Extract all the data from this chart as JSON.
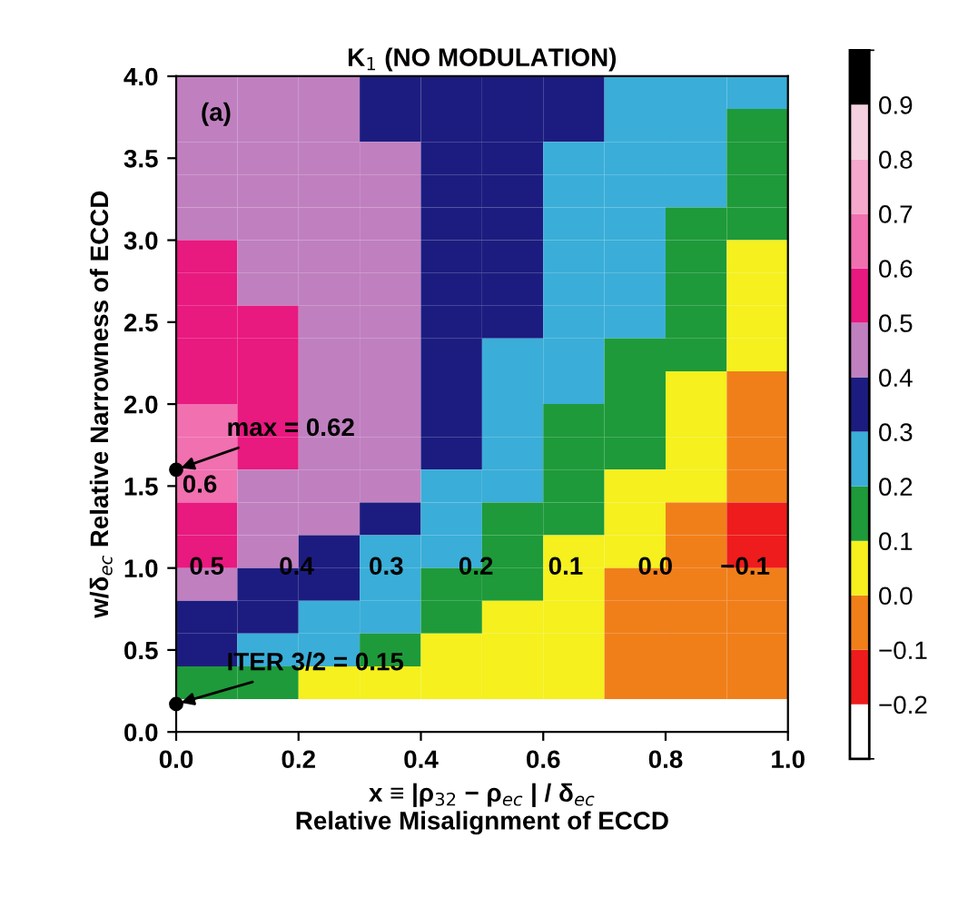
{
  "chart_data": {
    "type": "heatmap",
    "title": "K$_{1}$ (NO MODULATION)",
    "xlabel": "x ≡ |ρ$_{32}$ − ρ$_{ec}$ | / δ$_{ec}$\nRelative Misalignment of ECCD",
    "ylabel": "w/δ$_{ec}$ Relative Narrowness of ECCD",
    "x": [
      0.05,
      0.15,
      0.25,
      0.35,
      0.45,
      0.55,
      0.65,
      0.75,
      0.85,
      0.95
    ],
    "y": [
      3.9,
      3.7,
      3.5,
      3.3,
      3.1,
      2.9,
      2.7,
      2.5,
      2.3,
      2.1,
      1.9,
      1.7,
      1.5,
      1.3,
      1.1,
      0.9,
      0.7,
      0.5,
      0.3
    ],
    "cells": [
      [
        0.45,
        0.45,
        0.45,
        0.35,
        0.35,
        0.35,
        0.35,
        0.25,
        0.25,
        0.25
      ],
      [
        0.45,
        0.45,
        0.45,
        0.35,
        0.35,
        0.35,
        0.35,
        0.25,
        0.25,
        0.15
      ],
      [
        0.45,
        0.45,
        0.45,
        0.45,
        0.35,
        0.35,
        0.25,
        0.25,
        0.25,
        0.15
      ],
      [
        0.45,
        0.45,
        0.45,
        0.45,
        0.35,
        0.35,
        0.25,
        0.25,
        0.25,
        0.15
      ],
      [
        0.45,
        0.45,
        0.45,
        0.45,
        0.35,
        0.35,
        0.25,
        0.25,
        0.15,
        0.15
      ],
      [
        0.55,
        0.45,
        0.45,
        0.45,
        0.35,
        0.35,
        0.25,
        0.25,
        0.15,
        0.05
      ],
      [
        0.55,
        0.45,
        0.45,
        0.45,
        0.35,
        0.35,
        0.25,
        0.25,
        0.15,
        0.05
      ],
      [
        0.55,
        0.55,
        0.45,
        0.45,
        0.35,
        0.35,
        0.25,
        0.25,
        0.15,
        0.05
      ],
      [
        0.55,
        0.55,
        0.45,
        0.45,
        0.35,
        0.25,
        0.25,
        0.15,
        0.15,
        0.05
      ],
      [
        0.55,
        0.55,
        0.45,
        0.45,
        0.35,
        0.25,
        0.25,
        0.15,
        0.05,
        -0.05
      ],
      [
        0.65,
        0.55,
        0.45,
        0.45,
        0.35,
        0.25,
        0.15,
        0.15,
        0.05,
        -0.05
      ],
      [
        0.65,
        0.55,
        0.45,
        0.45,
        0.35,
        0.25,
        0.15,
        0.15,
        0.05,
        -0.05
      ],
      [
        0.65,
        0.45,
        0.45,
        0.45,
        0.25,
        0.25,
        0.15,
        0.05,
        0.05,
        -0.05
      ],
      [
        0.55,
        0.45,
        0.45,
        0.35,
        0.25,
        0.15,
        0.15,
        0.05,
        -0.05,
        -0.15
      ],
      [
        0.55,
        0.45,
        0.35,
        0.25,
        0.25,
        0.15,
        0.05,
        0.05,
        -0.05,
        -0.15
      ],
      [
        0.45,
        0.35,
        0.35,
        0.25,
        0.15,
        0.15,
        0.05,
        -0.05,
        -0.05,
        -0.05
      ],
      [
        0.35,
        0.35,
        0.25,
        0.25,
        0.15,
        0.05,
        0.05,
        -0.05,
        -0.05,
        -0.05
      ],
      [
        0.35,
        0.25,
        0.25,
        0.15,
        0.05,
        0.05,
        0.05,
        -0.05,
        -0.05,
        -0.05
      ],
      [
        0.15,
        0.15,
        0.05,
        0.05,
        0.05,
        0.05,
        0.05,
        -0.05,
        -0.05,
        -0.05
      ]
    ],
    "colors": [
      "#ffffff",
      "#ee1c1c",
      "#f07f1a",
      "#f5f01e",
      "#1e9a3a",
      "#3aaed8",
      "#1c1c80",
      "#c080c0",
      "#e8197f",
      "#f070b0",
      "#f5a8cc",
      "#f5d0e0",
      "#000000"
    ],
    "clim": [
      -0.3,
      1.0
    ],
    "cticks": [
      {
        "value": -0.2,
        "label": "−0.2"
      },
      {
        "value": -0.1,
        "label": "−0.1"
      },
      {
        "value": 0.0,
        "label": "0.0"
      },
      0.1,
      0.2,
      0.3,
      0.4,
      0.5,
      0.6,
      0.7,
      0.8,
      0.9
    ],
    "xlim": [
      0,
      1
    ],
    "ylim": [
      0,
      4
    ],
    "xticks": [
      {
        "value": 0,
        "label": "0.0"
      },
      0.2,
      0.4,
      0.6,
      0.8,
      {
        "value": 1,
        "label": "1.0"
      }
    ],
    "yticks": [
      {
        "value": 0,
        "label": "0.0"
      },
      0.5,
      {
        "value": 1,
        "label": "1.0"
      },
      1.5,
      {
        "value": 2,
        "label": "2.0"
      },
      2.5,
      {
        "value": 3,
        "label": "3.0"
      },
      3.5,
      {
        "value": 4,
        "label": "4.0"
      }
    ],
    "series": [
      {
        "type": "scatter",
        "color": "#000000",
        "x": [
          0,
          0
        ],
        "values": [
          1.6,
          0.17
        ]
      }
    ],
    "annotations": [
      "(a)",
      "0.6",
      "0.5",
      "0.4",
      "0.3",
      "0.2",
      "0.1",
      "0.0",
      "−0.1",
      {
        "text": "max = 0.62",
        "x": 0,
        "y": 1.6
      },
      {
        "text": "ITER 3/2 = 0.15",
        "x": 0,
        "y": 0.17
      }
    ]
  }
}
